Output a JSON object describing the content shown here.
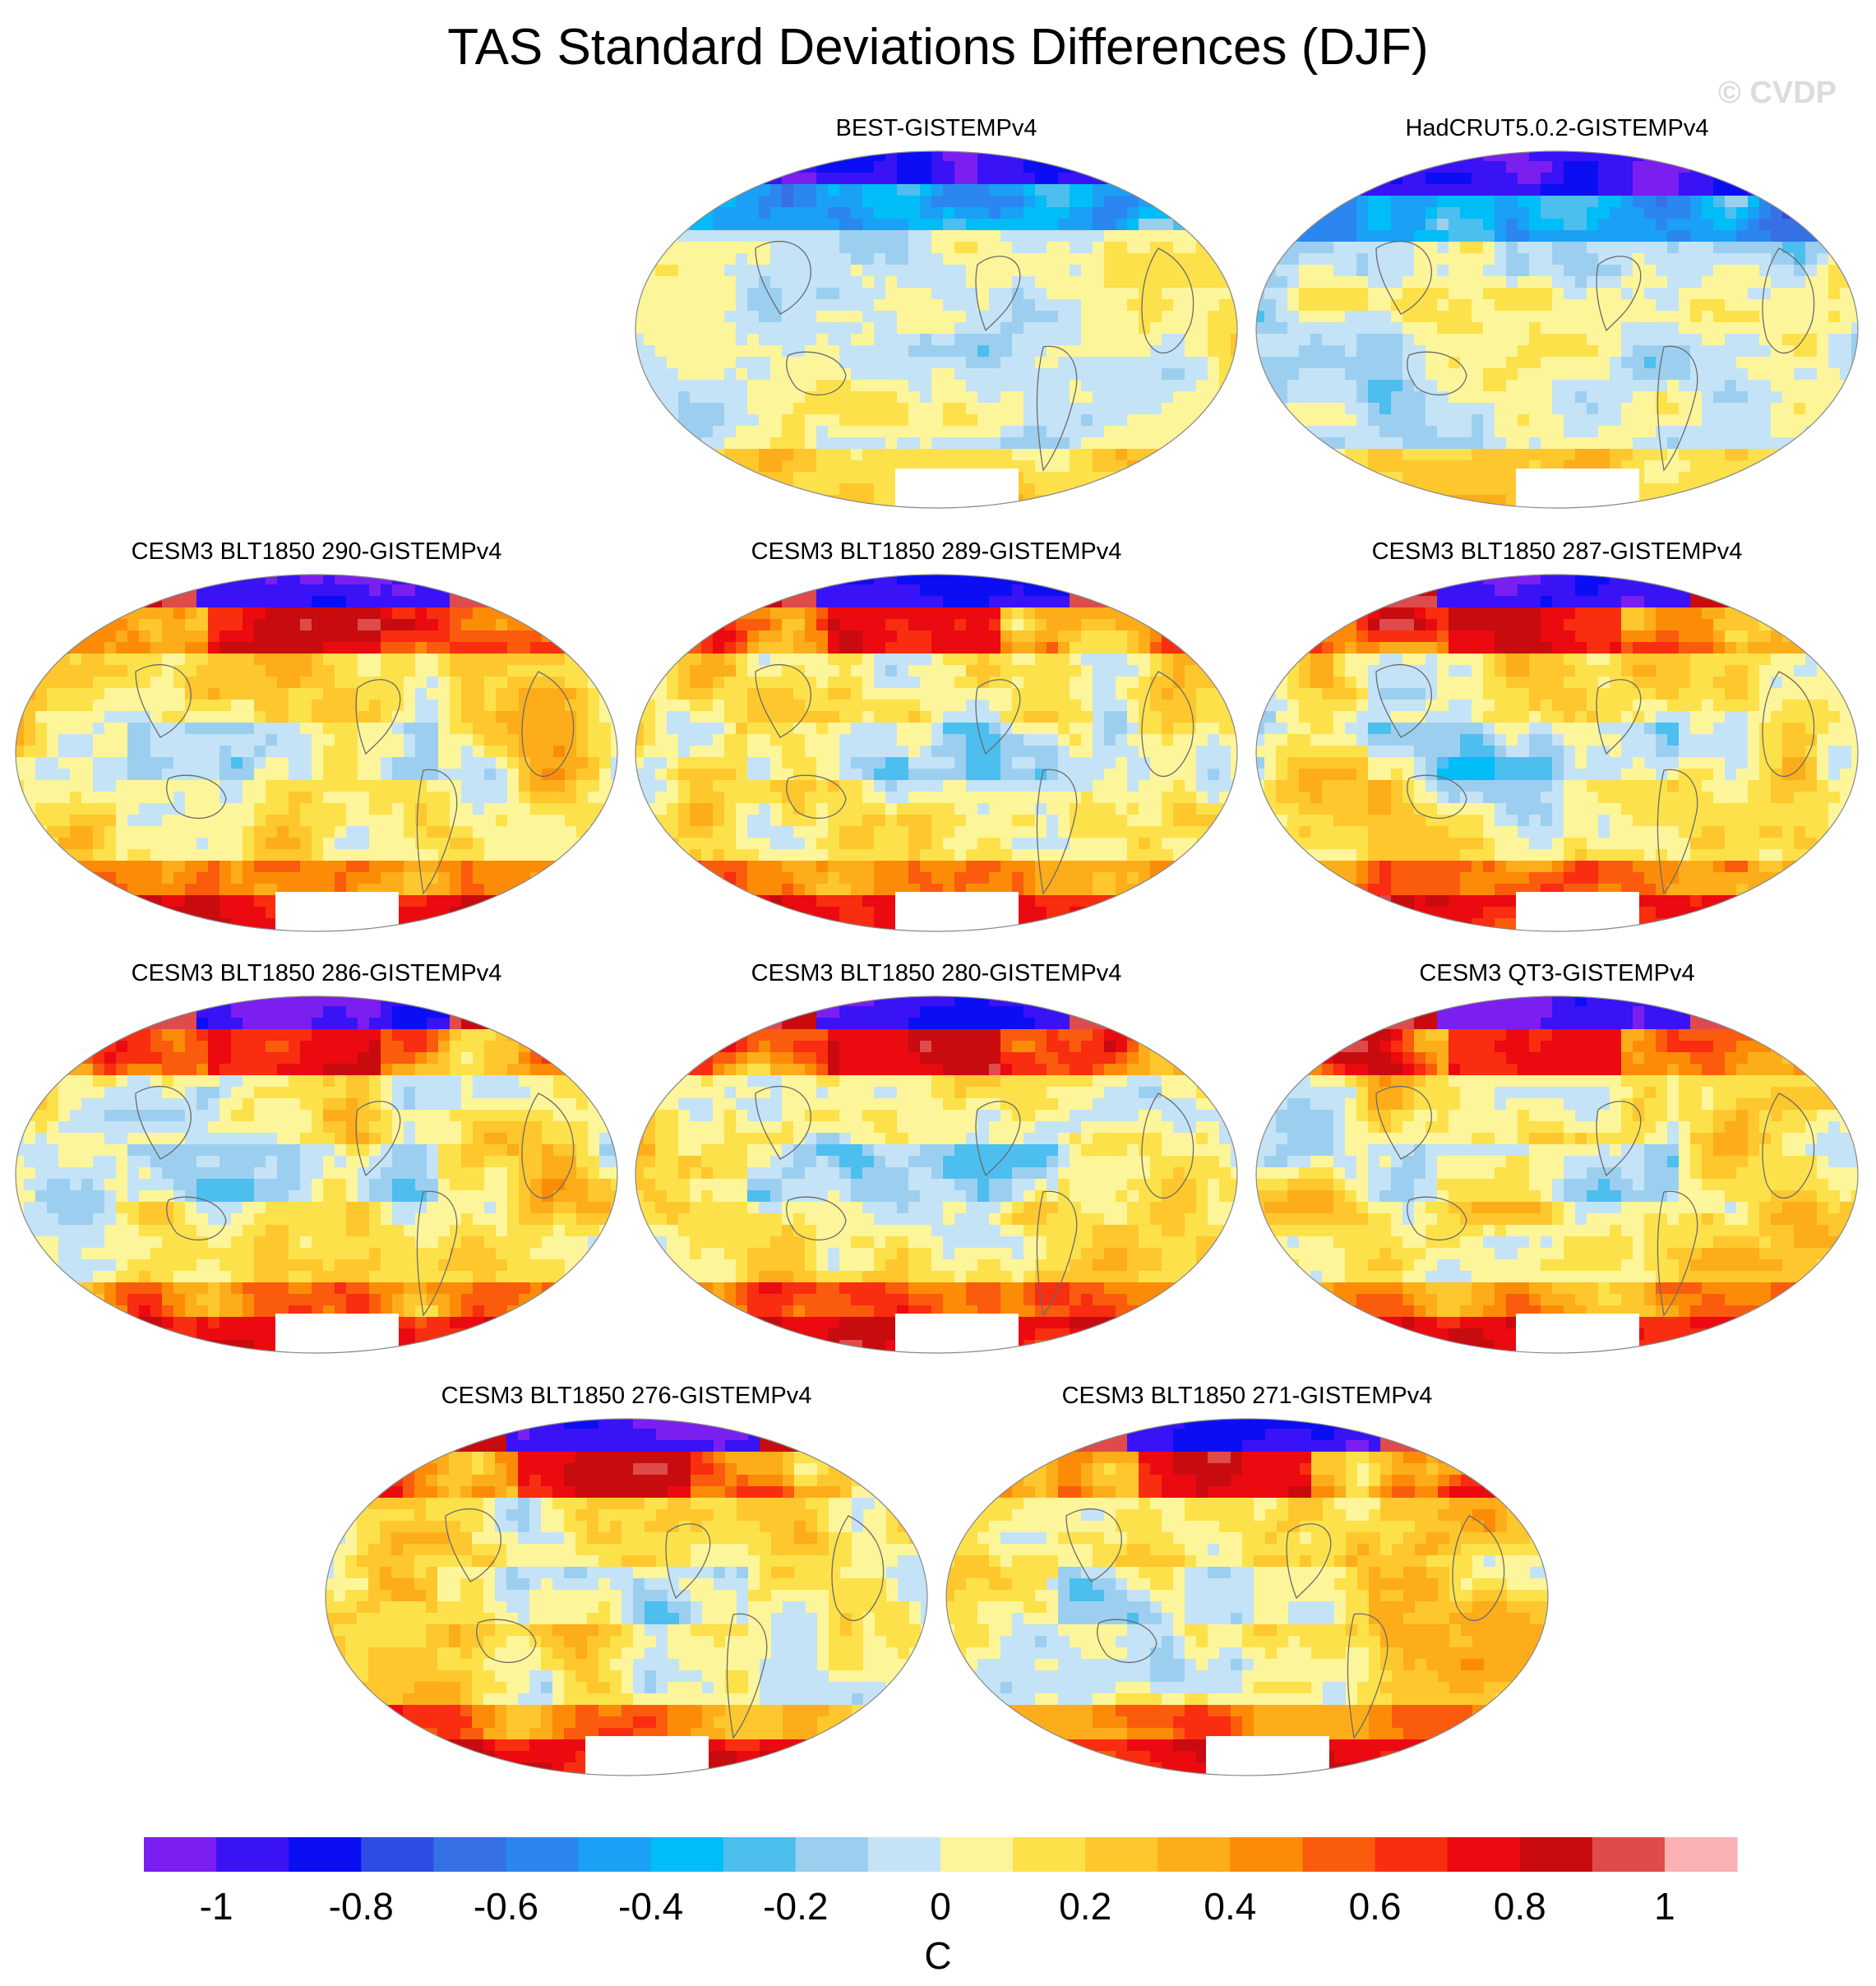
{
  "title": "TAS Standard Deviations Differences (DJF)",
  "watermark": "© CVDP",
  "panels": [
    {
      "label": "BEST-GISTEMPv4",
      "pattern": "obs-best"
    },
    {
      "label": "HadCRUT5.0.2-GISTEMPv4",
      "pattern": "obs-hadcrut"
    },
    {
      "label": "CESM3 BLT1850 290-GISTEMPv4",
      "pattern": "model"
    },
    {
      "label": "CESM3 BLT1850 289-GISTEMPv4",
      "pattern": "model"
    },
    {
      "label": "CESM3 BLT1850 287-GISTEMPv4",
      "pattern": "model"
    },
    {
      "label": "CESM3 BLT1850 286-GISTEMPv4",
      "pattern": "model"
    },
    {
      "label": "CESM3 BLT1850 280-GISTEMPv4",
      "pattern": "model"
    },
    {
      "label": "CESM3 QT3-GISTEMPv4",
      "pattern": "model"
    },
    {
      "label": "CESM3 BLT1850 276-GISTEMPv4",
      "pattern": "model"
    },
    {
      "label": "CESM3 BLT1850 271-GISTEMPv4",
      "pattern": "model"
    }
  ],
  "colorbar": {
    "colors": [
      "#7a1fef",
      "#3a12f6",
      "#0b0ef3",
      "#2c4ce4",
      "#3670e5",
      "#2b86f0",
      "#1aa0f5",
      "#00bdf8",
      "#4cbfef",
      "#9ccfef",
      "#c4e3f6",
      "#fdf59a",
      "#fde14a",
      "#fdc72d",
      "#fcad19",
      "#fc8c07",
      "#fb5b0d",
      "#f92d0f",
      "#ea0a10",
      "#c80b0e",
      "#de4b4a",
      "#fbb1b3"
    ],
    "tick_labels": [
      "-1",
      "-0.8",
      "-0.6",
      "-0.4",
      "-0.2",
      "0",
      "0.2",
      "0.4",
      "0.6",
      "0.8",
      "1"
    ],
    "units": "C"
  }
}
